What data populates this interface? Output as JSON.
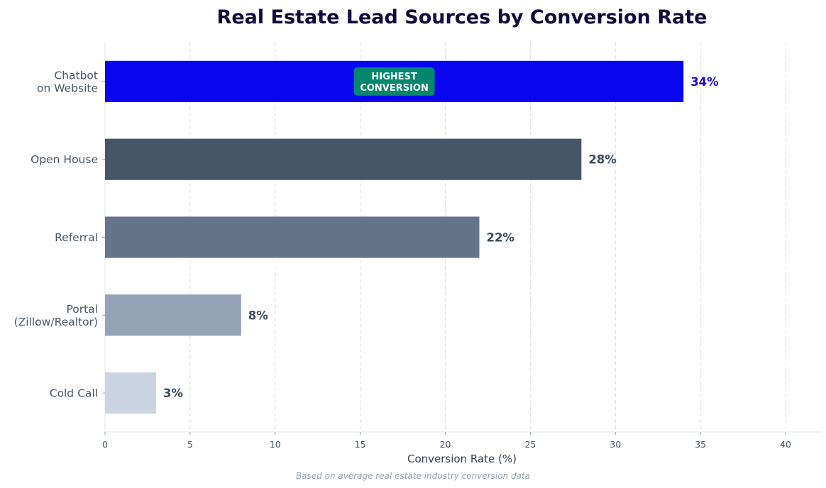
{
  "chart_data": {
    "type": "bar",
    "orientation": "horizontal",
    "title": "Real Estate Lead Sources by Conversion Rate",
    "xlabel": "Conversion Rate (%)",
    "ylabel": "",
    "xlim": [
      0,
      42
    ],
    "xticks": [
      0,
      5,
      10,
      15,
      20,
      25,
      30,
      35,
      40
    ],
    "grid": "vertical dashed",
    "categories": [
      [
        "Chatbot",
        "on Website"
      ],
      [
        "Open House"
      ],
      [
        "Referral"
      ],
      [
        "Portal",
        "(Zillow/Realtor)"
      ],
      [
        "Cold Call"
      ]
    ],
    "values": [
      34,
      28,
      22,
      8,
      3
    ],
    "value_labels": [
      "34%",
      "28%",
      "22%",
      "8%",
      "3%"
    ],
    "colors": [
      "#0a05f0",
      "#475569",
      "#64748b",
      "#94a3b8",
      "#cbd5e1"
    ],
    "value_label_colors": [
      "#1a0ad6",
      "#3d4b5c",
      "#3d4b5c",
      "#3d4b5c",
      "#3d4b5c"
    ],
    "annotation": {
      "lines": [
        "HIGHEST",
        "CONVERSION"
      ],
      "category_index": 0,
      "x": 17,
      "color": "#00876c"
    },
    "footnote": "Based on average real estate industry conversion data"
  }
}
